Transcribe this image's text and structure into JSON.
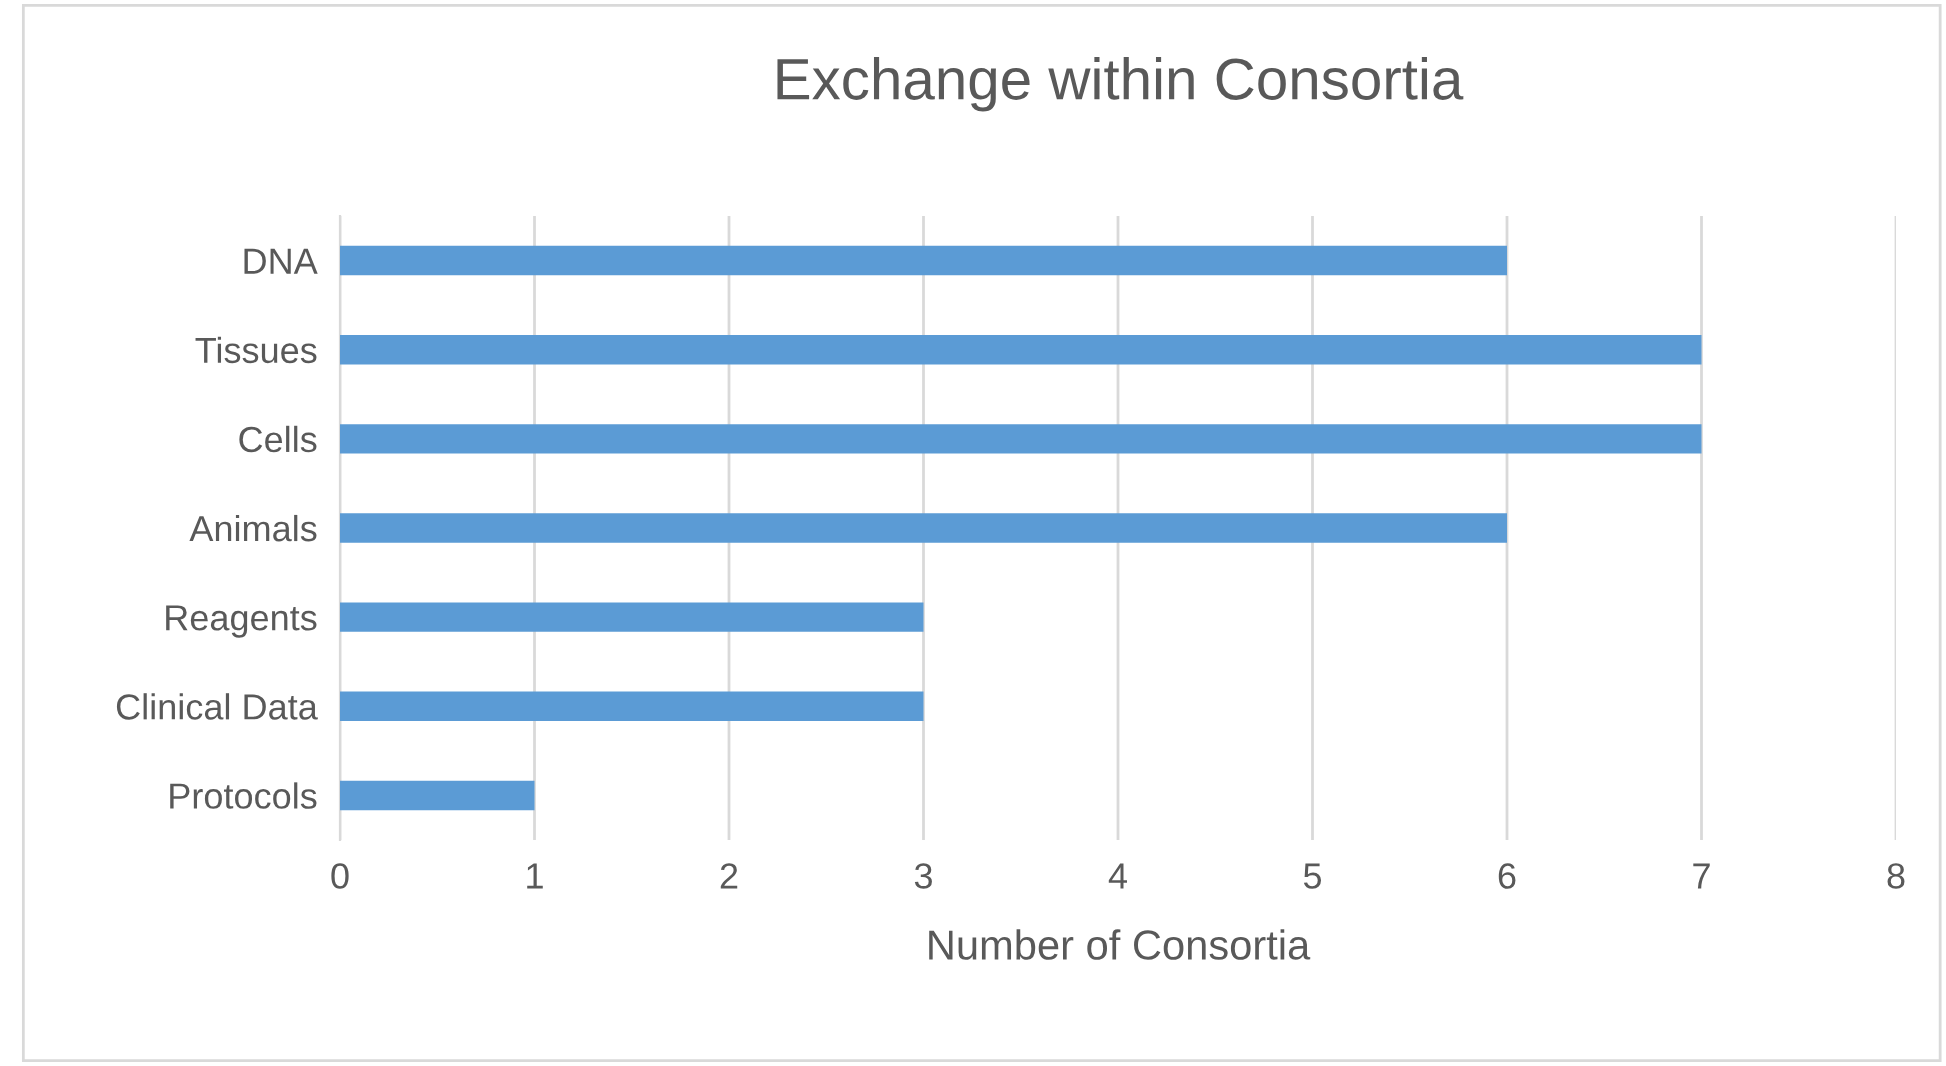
{
  "chart_data": {
    "type": "bar",
    "orientation": "horizontal",
    "title": "Exchange within Consortia",
    "xlabel": "Number of Consortia",
    "categories": [
      "DNA",
      "Tissues",
      "Cells",
      "Animals",
      "Reagents",
      "Clinical Data",
      "Protocols"
    ],
    "values": [
      6,
      7,
      7,
      6,
      3,
      3,
      1
    ],
    "color": "#5b9bd5",
    "xlim": [
      0,
      8
    ],
    "xticks": [
      0,
      1,
      2,
      3,
      4,
      5,
      6,
      7,
      8
    ],
    "grid": "x"
  }
}
